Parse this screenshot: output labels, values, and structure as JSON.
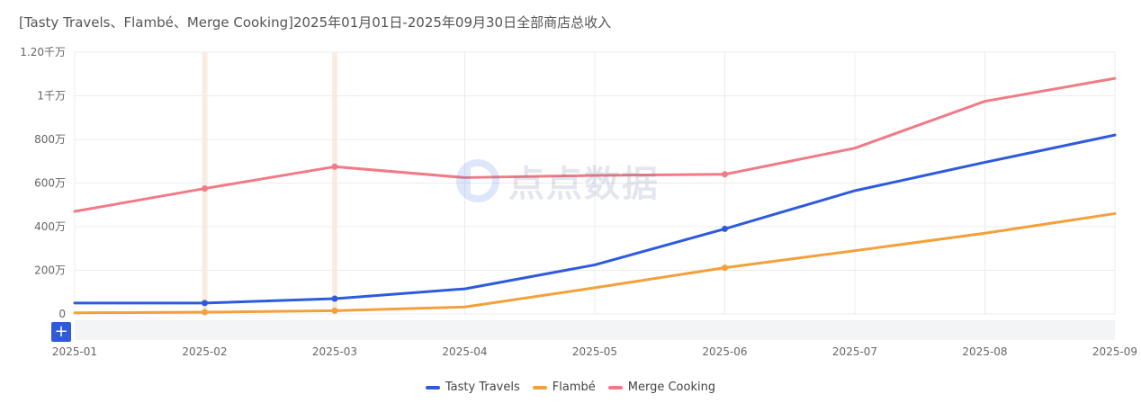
{
  "chart_data": {
    "type": "line",
    "title": "[Tasty Travels、Flambé、Merge Cooking]2025年01月01日-2025年09月30日全部商店总收入",
    "categories": [
      "2025-01",
      "2025-02",
      "2025-03",
      "2025-04",
      "2025-05",
      "2025-06",
      "2025-07",
      "2025-08",
      "2025-09"
    ],
    "y_ticks": [
      "0",
      "200万",
      "400万",
      "600万",
      "800万",
      "1千万",
      "1.20千万"
    ],
    "ylim": [
      0,
      1200
    ],
    "y_unit": "万",
    "grid": true,
    "legend_position": "bottom",
    "series": [
      {
        "name": "Tasty Travels",
        "color": "#2e5bdb",
        "values": [
          50,
          50,
          70,
          115,
          225,
          390,
          565,
          695,
          820
        ]
      },
      {
        "name": "Flambé",
        "color": "#f4a03a",
        "values": [
          5,
          8,
          15,
          32,
          120,
          212,
          290,
          370,
          460
        ]
      },
      {
        "name": "Merge Cooking",
        "color": "#f07b86",
        "values": [
          470,
          575,
          675,
          625,
          635,
          640,
          760,
          975,
          1080
        ]
      }
    ],
    "marked_points": [
      1,
      2,
      5
    ],
    "highlighted_categories": [
      1,
      2
    ]
  },
  "watermark": {
    "text": "点点数据",
    "icon": "dd-logo-icon"
  },
  "controls": {
    "plus_label": "+"
  }
}
